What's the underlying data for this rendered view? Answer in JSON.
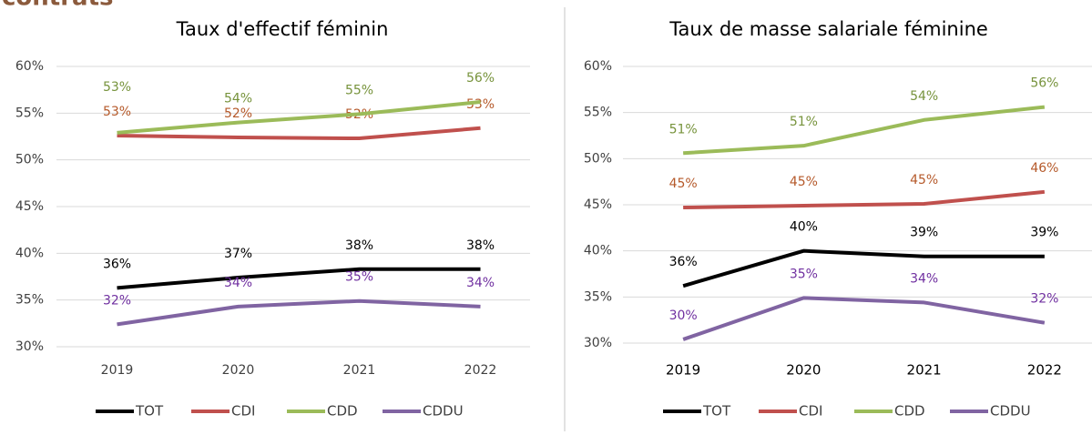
{
  "heading": "contrats",
  "chart_data": [
    {
      "type": "line",
      "title": "Taux d'effectif féminin",
      "categories": [
        "2019",
        "2020",
        "2021",
        "2022"
      ],
      "ylim": [
        30,
        60
      ],
      "yticks": [
        {
          "value": 30,
          "label": "30%"
        },
        {
          "value": 35,
          "label": "35%"
        },
        {
          "value": 40,
          "label": "40%"
        },
        {
          "value": 45,
          "label": "45%"
        },
        {
          "value": 50,
          "label": "50%"
        },
        {
          "value": 55,
          "label": "55%"
        },
        {
          "value": 60,
          "label": "60%"
        }
      ],
      "grid": true,
      "legend": "bottom",
      "series": [
        {
          "name": "TOT",
          "color": "#000000",
          "label_color": "#000000",
          "values": [
            36.3,
            37.4,
            38.3,
            38.3
          ],
          "value_labels": [
            "36%",
            "37%",
            "38%",
            "38%"
          ]
        },
        {
          "name": "CDI",
          "color": "#c0504d",
          "label_color": "#b5592a",
          "values": [
            52.6,
            52.4,
            52.3,
            53.4
          ],
          "value_labels": [
            "53%",
            "52%",
            "52%",
            "53%"
          ]
        },
        {
          "name": "CDD",
          "color": "#9bbb59",
          "label_color": "#77933c",
          "values": [
            52.9,
            54.0,
            54.9,
            56.2
          ],
          "value_labels": [
            "53%",
            "54%",
            "55%",
            "56%"
          ]
        },
        {
          "name": "CDDU",
          "color": "#8064a2",
          "label_color": "#7030a0",
          "values": [
            32.4,
            34.3,
            34.9,
            34.3
          ],
          "value_labels": [
            "32%",
            "34%",
            "35%",
            "34%"
          ]
        }
      ]
    },
    {
      "type": "line",
      "title": "Taux de masse salariale féminine",
      "categories": [
        "2019",
        "2020",
        "2021",
        "2022"
      ],
      "ylim": [
        30,
        60
      ],
      "yticks": [
        {
          "value": 30,
          "label": "30%"
        },
        {
          "value": 35,
          "label": "35%"
        },
        {
          "value": 40,
          "label": "40%"
        },
        {
          "value": 45,
          "label": "45%"
        },
        {
          "value": 50,
          "label": "50%"
        },
        {
          "value": 55,
          "label": "55%"
        },
        {
          "value": 60,
          "label": "60%"
        }
      ],
      "grid": true,
      "legend": "bottom",
      "series": [
        {
          "name": "TOT",
          "color": "#000000",
          "label_color": "#000000",
          "values": [
            36.2,
            40.0,
            39.4,
            39.4
          ],
          "value_labels": [
            "36%",
            "40%",
            "39%",
            "39%"
          ]
        },
        {
          "name": "CDI",
          "color": "#c0504d",
          "label_color": "#b5592a",
          "values": [
            44.7,
            44.9,
            45.1,
            46.4
          ],
          "value_labels": [
            "45%",
            "45%",
            "45%",
            "46%"
          ]
        },
        {
          "name": "CDD",
          "color": "#9bbb59",
          "label_color": "#77933c",
          "values": [
            50.6,
            51.4,
            54.2,
            55.6
          ],
          "value_labels": [
            "51%",
            "51%",
            "54%",
            "56%"
          ]
        },
        {
          "name": "CDDU",
          "color": "#8064a2",
          "label_color": "#7030a0",
          "values": [
            30.4,
            34.9,
            34.4,
            32.2
          ],
          "value_labels": [
            "30%",
            "35%",
            "34%",
            "32%"
          ]
        }
      ]
    }
  ]
}
